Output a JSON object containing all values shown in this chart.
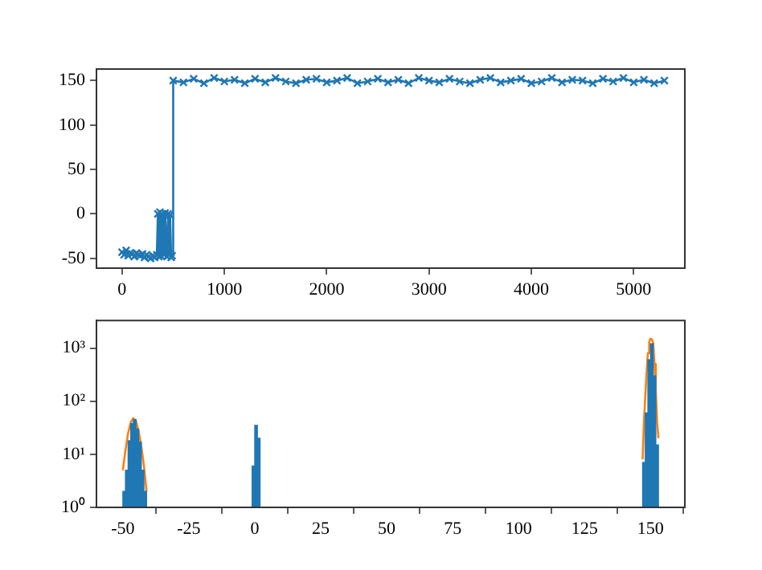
{
  "chart_data": [
    {
      "type": "line",
      "color": "#1f77b4",
      "marker": "cross",
      "line_style": "solid",
      "grid": false,
      "x": [
        0,
        20,
        40,
        60,
        80,
        100,
        120,
        140,
        160,
        180,
        200,
        220,
        240,
        260,
        280,
        300,
        320,
        340,
        350,
        360,
        370,
        380,
        390,
        400,
        410,
        420,
        440,
        450,
        460,
        470,
        480,
        490,
        500,
        600,
        700,
        800,
        900,
        1000,
        1100,
        1200,
        1300,
        1400,
        1500,
        1600,
        1700,
        1800,
        1900,
        2000,
        2100,
        2200,
        2300,
        2400,
        2500,
        2600,
        2700,
        2800,
        2900,
        3000,
        3100,
        3200,
        3300,
        3400,
        3500,
        3600,
        3700,
        3800,
        3900,
        4000,
        4100,
        4200,
        4300,
        4400,
        4500,
        4600,
        4700,
        4800,
        4900,
        5000,
        5100,
        5200,
        5300
      ],
      "values": [
        -43,
        -46,
        -41,
        -47,
        -44,
        -45,
        -48,
        -44,
        -46,
        -47,
        -45,
        -49,
        -46,
        -48,
        -50,
        -47,
        -49,
        -46,
        0,
        -48,
        2,
        -47,
        0,
        -2,
        -46,
        1,
        -48,
        0,
        -45,
        -1,
        -49,
        -47,
        150,
        148,
        152,
        147,
        153,
        149,
        151,
        147,
        152,
        148,
        153,
        149,
        147,
        151,
        152,
        148,
        150,
        153,
        147,
        149,
        152,
        148,
        151,
        147,
        153,
        150,
        148,
        152,
        149,
        147,
        151,
        153,
        148,
        150,
        152,
        147,
        149,
        153,
        148,
        151,
        150,
        147,
        152,
        149,
        153,
        148,
        151,
        147,
        150
      ],
      "xlim": [
        -250,
        5500
      ],
      "ylim": [
        -61,
        163
      ],
      "xticks": [
        0,
        1000,
        2000,
        3000,
        4000,
        5000
      ],
      "yticks": [
        -50,
        0,
        50,
        100,
        150
      ]
    },
    {
      "type": "histogram",
      "log": "y",
      "grid": false,
      "series": [
        {
          "type": "histogram",
          "color": "#1f77b4",
          "bins": [
            -50,
            -49,
            -48,
            -47,
            -46,
            -45,
            -44,
            -43,
            -42,
            -41,
            -1,
            0,
            1,
            2,
            147,
            148,
            149,
            150,
            151,
            152,
            153
          ],
          "values": [
            2,
            5,
            18,
            38,
            45,
            30,
            17,
            5,
            2,
            null,
            6,
            35,
            20,
            null,
            7,
            60,
            600,
            1200,
            300,
            15
          ]
        },
        {
          "type": "line",
          "color": "#ff7f0e",
          "x": [
            -50,
            -49,
            -48,
            -47,
            -46,
            -45,
            -44,
            -43,
            -42,
            -41
          ],
          "values": [
            5,
            12,
            25,
            40,
            48,
            42,
            27,
            14,
            6,
            2
          ]
        },
        {
          "type": "line",
          "color": "#ff7f0e",
          "x": [
            147,
            147.5,
            148,
            148.5,
            149,
            149.5,
            150,
            150.5,
            151,
            151.5,
            152,
            152.5,
            153
          ],
          "values": [
            8,
            40,
            120,
            350,
            800,
            1300,
            1500,
            1450,
            1250,
            500,
            150,
            40,
            20
          ]
        }
      ],
      "xlim": [
        -60,
        163
      ],
      "ylim": [
        1,
        3300
      ],
      "xticks": [
        -50,
        -25,
        0,
        25,
        50,
        75,
        100,
        125,
        150
      ],
      "yticks": [
        {
          "value": 1,
          "label": "10⁰"
        },
        {
          "value": 10,
          "label": "10¹"
        },
        {
          "value": 100,
          "label": "10²"
        },
        {
          "value": 1000,
          "label": "10³"
        }
      ]
    }
  ]
}
